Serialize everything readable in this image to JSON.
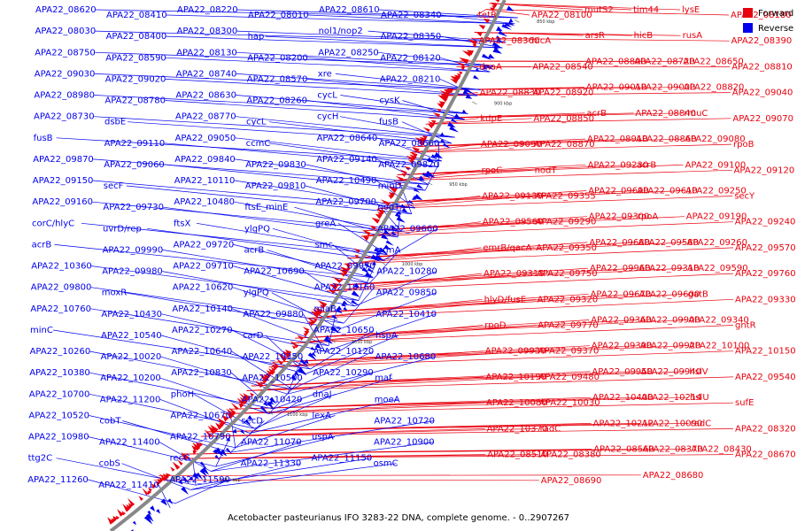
{
  "caption": "Acetobacter pasteurianus IFO 3283-22 DNA, complete genome. - 0..2907267",
  "legend": [
    {
      "label": "Forward",
      "color": "#e8000d"
    },
    {
      "label": "Reverse",
      "color": "#0000ee"
    }
  ],
  "ticks": [
    "850 kbp",
    "900 kbp",
    "950 kbp",
    "1000 kbp",
    "1050 kbp",
    "1100 kbp",
    "1150 kbp",
    "1200 kbp"
  ],
  "forward_labels": [
    "tim44",
    "APA22_08100",
    "lysE",
    "tetR",
    "mutS2",
    "APA22_08180",
    "hicB",
    "hicA",
    "rusA",
    "APA22_08360",
    "arsR",
    "APA22_08390",
    "APA22_08720",
    "APA22_08540",
    "APA22_08650",
    "dnaA",
    "APA22_08800",
    "APA22_08810",
    "APA22_09000",
    "APA22_08920",
    "APA22_08820",
    "APA22_08830",
    "APA22_09010",
    "APA22_09040",
    "APA22_08840",
    "APA22_08850",
    "rmuC",
    "kdpE",
    "acrB",
    "APA22_09070",
    "APA22_08860",
    "APA22_08870",
    "APA22_09080",
    "APA22_09090",
    "APA22_08910",
    "rpoB",
    "acrB",
    "nodT",
    "APA22_09100",
    "rpoC",
    "APA22_09230",
    "APA22_09120",
    "APA22_09610",
    "APA22_09355",
    "APA22_09250",
    "APA22_09130",
    "APA22_09690",
    "secY",
    "rpoA",
    "APA22_09290",
    "APA22_09190",
    "APA22_09560",
    "APA22_09300",
    "APA22_09240",
    "APA22_09580",
    "APA22_09350",
    "APA22_09260",
    "emrB/qacA",
    "APA22_09680",
    "APA22_09570",
    "APA22_09310",
    "APA22_09750",
    "APA22_09590",
    "APA22_09315",
    "APA22_09960",
    "APA22_09760",
    "APA22_09600",
    "APA22_09320",
    "gatB",
    "hlyD/fusE",
    "APA22_09670",
    "APA22_09330",
    "APA22_09900",
    "APA22_09770",
    "APA22_09340",
    "rpoD",
    "APA22_09360",
    "gntR",
    "APA22_09920",
    "APA22_09370",
    "APA22_10100",
    "APA22_09930",
    "APA22_09390",
    "APA22_10150",
    "APA22_09940",
    "APA22_09480",
    "hslV",
    "APA22_10190",
    "APA22_09950",
    "APA22_09540",
    "APA22_10214",
    "APA22_10030",
    "hslU",
    "APA22_10080",
    "APA22_10400",
    "sufE",
    "APA22_10090",
    "radC",
    "radC",
    "APA22_10370",
    "APA22_10212",
    "APA22_08320",
    "APA22_08370",
    "APA22_08380",
    "APA22_08430",
    "APA22_08510",
    "APA22_08560",
    "APA22_08670",
    "APA22_08680",
    "APA22_08690"
  ],
  "reverse_labels": [
    "APA22_08620",
    "APA22_08410",
    "APA22_08220",
    "APA22_08010",
    "APA22_08610",
    "APA22_08340",
    "APA22_08030",
    "APA22_08400",
    "APA22_08300",
    "hap",
    "nol1/nop2",
    "APA22_08350",
    "APA22_08750",
    "APA22_08590",
    "APA22_08130",
    "APA22_08200",
    "APA22_08250",
    "APA22_08120",
    "APA22_09030",
    "APA22_09020",
    "APA22_08740",
    "APA22_08570",
    "xre",
    "APA22_08210",
    "APA22_08980",
    "APA22_08780",
    "APA22_08630",
    "APA22_08260",
    "cycL",
    "cysK",
    "APA22_08730",
    "dsbE",
    "APA22_08770",
    "cycL",
    "cycH",
    "fusB",
    "fusB",
    "APA22_09110",
    "APA22_09050",
    "ccmC",
    "APA22_08640",
    "APA22_08660",
    "APA22_09870",
    "APA22_09060",
    "APA22_09840",
    "APA22_09830",
    "APA22_09140",
    "APA22_09820",
    "APA22_09150",
    "secF",
    "APA22_10110",
    "APA22_09810",
    "APA22_10490",
    "minD",
    "APA22_09160",
    "APA22_09730",
    "APA22_10480",
    "ftsE_minE",
    "APA22_09700",
    "nodT",
    "corC/hlyC",
    "uvrD/rep",
    "ftsX",
    "ylgPQ",
    "greA",
    "APA22_09660",
    "acrB",
    "APA22_09990",
    "APA22_09720",
    "acrB",
    "smc",
    "prmA",
    "APA22_10360",
    "APA22_09980",
    "APA22_09710",
    "APA22_10690",
    "APA22_09970",
    "APA22_10280",
    "APA22_09800",
    "moxR",
    "APA22_10620",
    "ylgPQ",
    "APA22_10160",
    "APA22_09850",
    "APA22_10760",
    "APA22_10430",
    "APA22_10140",
    "APA22_09880",
    "miaB",
    "APA22_10410",
    "minC",
    "APA22_10540",
    "APA22_10270",
    "carD",
    "APA22_10650",
    "hspA",
    "APA22_10260",
    "APA22_10020",
    "APA22_10640",
    "APA22_10350",
    "APA22_10120",
    "APA22_10680",
    "APA22_10380",
    "APA22_10200",
    "APA22_10830",
    "APA22_10500",
    "APA22_10290",
    "maf",
    "APA22_10700",
    "APA22_11200",
    "phoH",
    "APA22_10420",
    "dnaJ",
    "moeA",
    "APA22_10520",
    "cobT",
    "APA22_10670",
    "secD",
    "lexA",
    "APA22_10720",
    "APA22_10980",
    "APA22_11400",
    "APA22_10790",
    "APA22_11070",
    "uspA",
    "APA22_10900",
    "ttg2C",
    "cobS",
    "recG",
    "APA22_11330",
    "APA22_11150",
    "osmC",
    "APA22_11260",
    "APA22_11410",
    "APA22_11590"
  ]
}
